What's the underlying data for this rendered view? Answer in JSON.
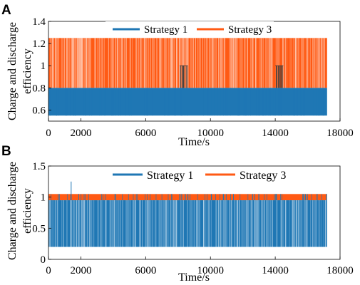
{
  "ylabel_shared": [
    "Charge and discharge",
    "efficiency"
  ],
  "colors": {
    "strategy_1": "#1f77b4",
    "strategy_3": "#ff5a14"
  },
  "chart_data": [
    {
      "panel": "A",
      "type": "line",
      "xlabel": "Time/s",
      "xlim": [
        0,
        18000
      ],
      "ylim": [
        0.5,
        1.4
      ],
      "xticks": [
        "0",
        "2000",
        "6000",
        "10000",
        "14000",
        "18000"
      ],
      "yticks": [
        "0.6",
        "0.8",
        "1",
        "1.2",
        "1.4"
      ],
      "legend": {
        "placement": "top-center",
        "entries": [
          "Strategy 1",
          "Strategy 3"
        ]
      },
      "x_max_data": 17200,
      "series": [
        {
          "name": "Strategy 1",
          "high": 0.8,
          "low": 0.55,
          "low_density": 0.03
        },
        {
          "name": "Strategy 3",
          "high": 1.25,
          "low": 0.8,
          "mid": 1.0,
          "mid_ranges": [
            [
              8100,
              8600
            ],
            [
              14000,
              14500
            ]
          ]
        }
      ]
    },
    {
      "panel": "B",
      "type": "line",
      "xlabel": "Time/s",
      "xlim": [
        0,
        18000
      ],
      "ylim": [
        0,
        1.5
      ],
      "xticks": [
        "0",
        "2000",
        "6000",
        "10000",
        "14000",
        "18000"
      ],
      "yticks": [
        "0",
        "0.5",
        "1",
        "1.5"
      ],
      "legend": {
        "placement": "top-center",
        "entries": [
          "Strategy 1",
          "Strategy 3"
        ]
      },
      "x_max_data": 17200,
      "series": [
        {
          "name": "Strategy 1",
          "high": 0.95,
          "low": 0.2,
          "spikes": [
            [
              600,
              1.05
            ],
            [
              1400,
              1.25
            ]
          ]
        },
        {
          "name": "Strategy 3",
          "high": 1.05,
          "low": 0.95
        }
      ]
    }
  ]
}
